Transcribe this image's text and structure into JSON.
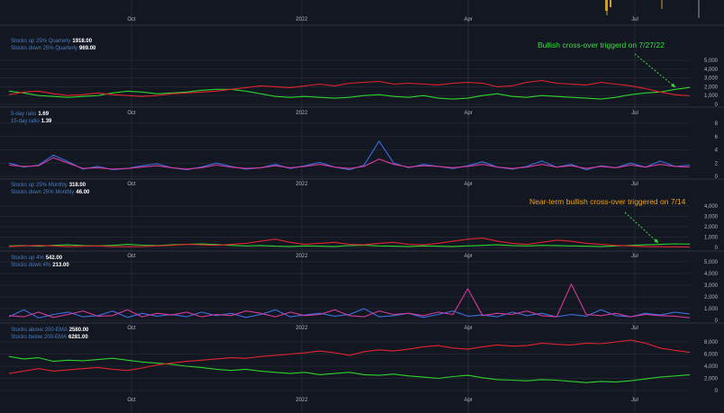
{
  "theme": {
    "background": "#131722",
    "grid": "#262a35",
    "divider": "#2f3340",
    "axis_text": "#b2b5be",
    "legend_label": "#4a7fc1",
    "legend_value": "#ffffff",
    "red": "#e0242f",
    "green": "#2ed12e",
    "blue": "#3d6fe0",
    "magenta": "#d43a9a",
    "annotation_green": "#36e13a",
    "annotation_orange": "#f0a519"
  },
  "time_axis": {
    "labels": [
      "Oct",
      "2022",
      "Apr",
      "Jul"
    ]
  },
  "annotations": {
    "quarterly": "Bullish cross-over triggerd on 7/27/22",
    "monthly": "Near-term bullish cross-over triggered on 7/14"
  },
  "chart_data": [
    {
      "type": "line",
      "panel": "quarterly",
      "ylim": [
        0,
        5000
      ],
      "yticks": [
        "0",
        "1,000",
        "2,000",
        "3,000",
        "4,000",
        "5,000"
      ],
      "grid": true,
      "series": [
        {
          "name": "Stocks up 25% Quarterly",
          "last": "1918.00",
          "color": "#2ed12e",
          "values": [
            1500,
            1300,
            1000,
            900,
            800,
            900,
            1000,
            1300,
            1500,
            1400,
            1200,
            1300,
            1400,
            1600,
            1700,
            1700,
            1500,
            1200,
            900,
            800,
            900,
            800,
            700,
            800,
            1000,
            1100,
            900,
            800,
            1000,
            700,
            600,
            700,
            1000,
            1200,
            900,
            800,
            1000,
            900,
            800,
            700,
            600,
            800,
            1100,
            1300,
            1400,
            1700,
            1918
          ]
        },
        {
          "name": "Stocks down 25% Quarterly",
          "last": "969.00",
          "color": "#e0242f",
          "values": [
            1100,
            1400,
            1500,
            1200,
            1000,
            1100,
            1300,
            1100,
            1000,
            900,
            1000,
            1200,
            1300,
            1400,
            1500,
            1700,
            1900,
            2100,
            2000,
            1900,
            2100,
            2300,
            2100,
            2400,
            2500,
            2600,
            2300,
            2400,
            2300,
            2200,
            2400,
            2500,
            2400,
            2000,
            2100,
            2500,
            2700,
            2400,
            2300,
            2200,
            2500,
            2300,
            2100,
            1800,
            1400,
            1100,
            969
          ]
        }
      ]
    },
    {
      "type": "line",
      "panel": "ratio",
      "ylim": [
        0,
        8
      ],
      "yticks": [
        "0",
        "2",
        "4",
        "6",
        "8"
      ],
      "grid": true,
      "series": [
        {
          "name": "5-day ratio",
          "last": "1.69",
          "color": "#3d6fe0",
          "values": [
            2.0,
            1.4,
            1.7,
            3.2,
            2.2,
            1.1,
            1.5,
            1.0,
            1.2,
            1.6,
            1.9,
            1.3,
            1.0,
            1.4,
            2.0,
            1.5,
            1.1,
            1.3,
            1.8,
            1.2,
            1.6,
            2.1,
            1.4,
            1.0,
            1.7,
            5.3,
            2.0,
            1.3,
            1.8,
            1.5,
            1.2,
            1.6,
            2.2,
            1.4,
            1.1,
            1.5,
            2.3,
            1.4,
            1.8,
            1.0,
            1.6,
            1.3,
            2.0,
            1.4,
            2.3,
            1.5,
            1.69
          ]
        },
        {
          "name": "15-day ratio",
          "last": "1.39",
          "color": "#d43a9a",
          "values": [
            1.7,
            1.5,
            1.6,
            2.8,
            2.0,
            1.2,
            1.3,
            1.1,
            1.2,
            1.4,
            1.6,
            1.3,
            1.1,
            1.3,
            1.7,
            1.4,
            1.2,
            1.3,
            1.6,
            1.3,
            1.5,
            1.8,
            1.4,
            1.2,
            1.5,
            2.6,
            1.8,
            1.4,
            1.6,
            1.5,
            1.3,
            1.5,
            1.8,
            1.4,
            1.2,
            1.4,
            1.8,
            1.4,
            1.6,
            1.2,
            1.5,
            1.3,
            1.7,
            1.4,
            1.8,
            1.5,
            1.39
          ]
        }
      ]
    },
    {
      "type": "line",
      "panel": "monthly",
      "ylim": [
        0,
        4000
      ],
      "yticks": [
        "0",
        "1,000",
        "2,000",
        "3,000",
        "4,000"
      ],
      "grid": true,
      "series": [
        {
          "name": "Stocks up 25% Monthly",
          "last": "318.00",
          "color": "#2ed12e",
          "values": [
            150,
            180,
            120,
            200,
            250,
            180,
            150,
            200,
            300,
            220,
            180,
            250,
            300,
            350,
            280,
            200,
            150,
            180,
            120,
            100,
            150,
            120,
            100,
            180,
            220,
            150,
            120,
            100,
            150,
            120,
            100,
            150,
            200,
            250,
            180,
            150,
            200,
            180,
            150,
            120,
            100,
            150,
            200,
            250,
            300,
            350,
            318
          ]
        },
        {
          "name": "Stocks down 25% Monthly",
          "last": "46.00",
          "color": "#e0242f",
          "values": [
            100,
            150,
            200,
            150,
            100,
            120,
            150,
            100,
            80,
            100,
            150,
            200,
            300,
            250,
            200,
            300,
            400,
            600,
            800,
            500,
            300,
            400,
            500,
            300,
            250,
            400,
            500,
            300,
            250,
            400,
            600,
            800,
            900,
            600,
            400,
            300,
            500,
            700,
            600,
            400,
            300,
            200,
            150,
            100,
            80,
            60,
            46
          ]
        }
      ]
    },
    {
      "type": "line",
      "panel": "daily4",
      "ylim": [
        0,
        5000
      ],
      "yticks": [
        "0",
        "1,000",
        "2,000",
        "3,000",
        "4,000",
        "5,000"
      ],
      "grid": true,
      "series": [
        {
          "name": "Stocks up 4%",
          "last": "542.00",
          "color": "#3d6fe0",
          "values": [
            300,
            900,
            200,
            500,
            700,
            300,
            400,
            800,
            250,
            600,
            350,
            500,
            300,
            700,
            400,
            600,
            250,
            500,
            900,
            300,
            450,
            600,
            350,
            500,
            1000,
            300,
            400,
            600,
            250,
            500,
            800,
            350,
            450,
            300,
            700,
            400,
            600,
            300,
            500,
            350,
            900,
            400,
            300,
            600,
            450,
            700,
            542
          ]
        },
        {
          "name": "Stocks down 4%",
          "last": "213.00",
          "color": "#d43a9a",
          "values": [
            400,
            300,
            700,
            250,
            500,
            800,
            350,
            400,
            900,
            300,
            600,
            450,
            700,
            300,
            500,
            400,
            800,
            600,
            300,
            700,
            400,
            500,
            900,
            400,
            300,
            800,
            500,
            600,
            400,
            700,
            500,
            2700,
            400,
            600,
            500,
            800,
            400,
            300,
            3100,
            500,
            400,
            600,
            300,
            500,
            400,
            350,
            213
          ]
        }
      ]
    },
    {
      "type": "line",
      "panel": "ema200",
      "ylim": [
        0,
        8000
      ],
      "yticks": [
        "0",
        "2,000",
        "4,000",
        "6,000",
        "8,000"
      ],
      "grid": true,
      "series": [
        {
          "name": "Stocks above 200-EMA",
          "last": "2580.00",
          "color": "#2ed12e",
          "values": [
            5600,
            5200,
            5400,
            4800,
            5000,
            4900,
            5100,
            5300,
            5000,
            4700,
            4500,
            4300,
            4000,
            3800,
            3500,
            3300,
            3500,
            3200,
            3000,
            2800,
            3000,
            2600,
            2800,
            3000,
            2600,
            2500,
            2700,
            2400,
            2200,
            2000,
            2300,
            2500,
            2100,
            1800,
            1700,
            1600,
            1800,
            1700,
            1500,
            1300,
            1500,
            1400,
            1600,
            1900,
            2200,
            2400,
            2580
          ]
        },
        {
          "name": "Stocks below 200-EMA",
          "last": "6281.00",
          "color": "#e0242f",
          "values": [
            2800,
            3200,
            3600,
            3200,
            3400,
            3600,
            3800,
            3500,
            3300,
            3700,
            4200,
            4500,
            4800,
            5000,
            5200,
            5400,
            5300,
            5600,
            5800,
            6000,
            6200,
            6500,
            6200,
            5800,
            6400,
            6700,
            6500,
            6800,
            7200,
            7400,
            7000,
            6800,
            7200,
            7500,
            7300,
            7400,
            7800,
            7600,
            7500,
            7800,
            7700,
            8000,
            8300,
            7800,
            7000,
            6600,
            6281
          ]
        }
      ]
    }
  ]
}
